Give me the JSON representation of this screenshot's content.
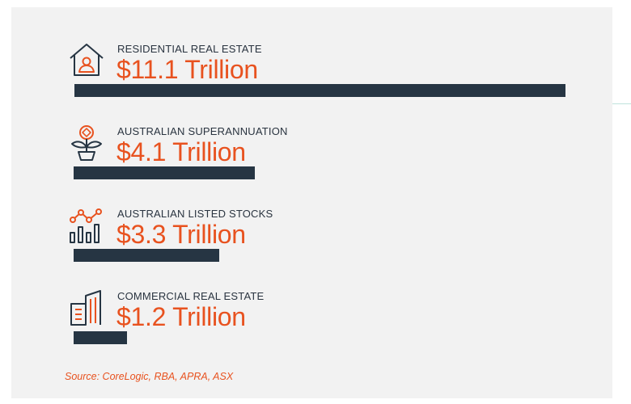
{
  "chart_data": {
    "type": "bar",
    "orientation": "horizontal",
    "categories": [
      "RESIDENTIAL REAL ESTATE",
      "AUSTRALIAN SUPERANNUATION",
      "AUSTRALIAN LISTED STOCKS",
      "COMMERCIAL REAL ESTATE"
    ],
    "values": [
      11.1,
      4.1,
      3.3,
      1.2
    ],
    "value_labels": [
      "$11.1 Trillion",
      "$4.1 Trillion",
      "$3.3 Trillion",
      "$1.2 Trillion"
    ],
    "unit": "Trillion",
    "icons": [
      "house-person-icon",
      "money-plant-icon",
      "stock-chart-icon",
      "office-building-icon"
    ],
    "bar_color": "#263543",
    "accent_color": "#e8521f",
    "source": "Source: CoreLogic, RBA, APRA, ASX"
  }
}
